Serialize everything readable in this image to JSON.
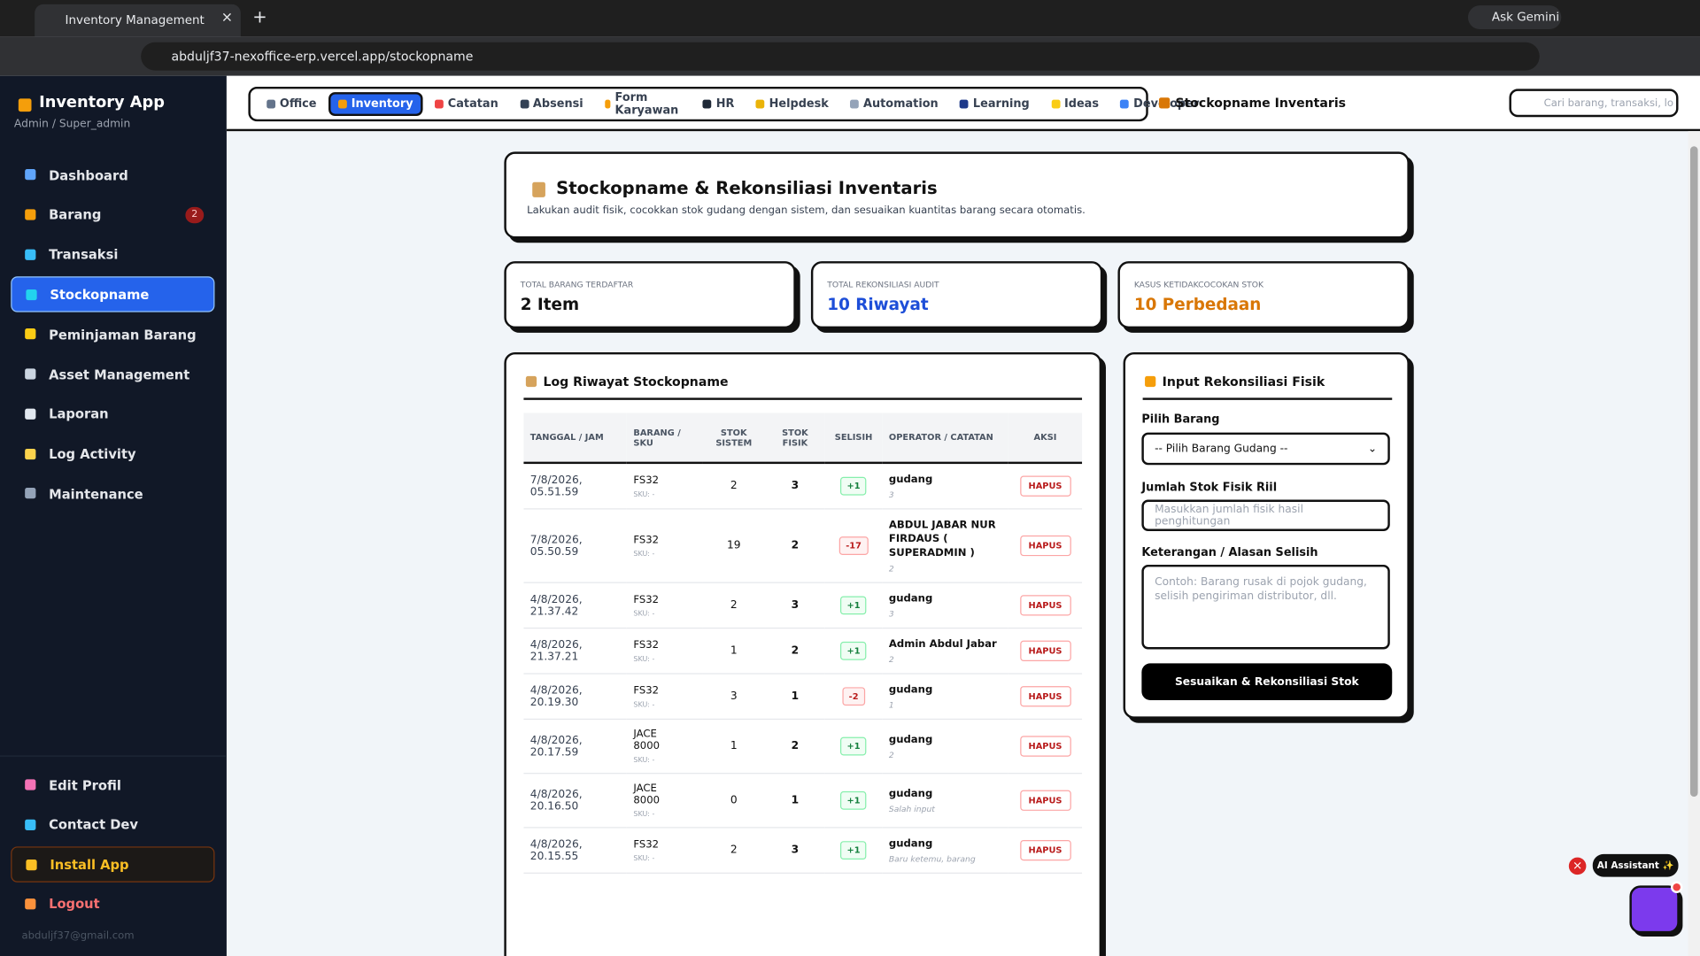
{
  "browser": {
    "tab_title": "Inventory Management",
    "url": "abduljf37-nexoffice-erp.vercel.app/stockopname",
    "ask_gemini": "Ask Gemini"
  },
  "sidebar": {
    "app_name": "Inventory App",
    "role": "Admin / Super_admin",
    "nav": [
      {
        "label": "Dashboard",
        "color": "#60a5fa"
      },
      {
        "label": "Barang",
        "badge": "2",
        "color": "#f59e0b"
      },
      {
        "label": "Transaksi",
        "color": "#38bdf8"
      },
      {
        "label": "Stockopname",
        "active": true,
        "color": "#22d3ee"
      },
      {
        "label": "Peminjaman Barang",
        "color": "#facc15"
      },
      {
        "label": "Asset Management",
        "color": "#cbd5e1"
      },
      {
        "label": "Laporan",
        "color": "#e2e8f0"
      },
      {
        "label": "Log Activity",
        "color": "#fcd34d"
      },
      {
        "label": "Maintenance",
        "color": "#94a3b8"
      }
    ],
    "bottom": [
      {
        "label": "Edit Profil",
        "color": "#f472b6"
      },
      {
        "label": "Contact Dev",
        "color": "#38bdf8"
      },
      {
        "label": "Install App",
        "color": "#fbbf24",
        "style": "install"
      },
      {
        "label": "Logout",
        "color": "#fb923c",
        "style": "logout"
      }
    ],
    "email": "abduljf37@gmail.com"
  },
  "topnav": {
    "tabs": [
      {
        "label": "Office",
        "color": "#64748b"
      },
      {
        "label": "Inventory",
        "active": true,
        "color": "#f59e0b"
      },
      {
        "label": "Catatan",
        "color": "#ef4444"
      },
      {
        "label": "Absensi",
        "color": "#334155"
      },
      {
        "label": "Form Karyawan",
        "color": "#f59e0b"
      },
      {
        "label": "HR",
        "color": "#1f2937"
      },
      {
        "label": "Helpdesk",
        "color": "#eab308"
      },
      {
        "label": "Automation",
        "color": "#94a3b8"
      },
      {
        "label": "Learning",
        "color": "#1e3a8a"
      },
      {
        "label": "Ideas",
        "color": "#facc15"
      },
      {
        "label": "Developer",
        "color": "#3b82f6"
      }
    ],
    "page_label": "Stockopname Inventaris",
    "search_placeholder": "Cari barang, transaksi, lo"
  },
  "header": {
    "title": "Stockopname & Rekonsiliasi Inventaris",
    "subtitle": "Lakukan audit fisik, cocokkan stok gudang dengan sistem, dan sesuaikan kuantitas barang secara otomatis."
  },
  "stats": [
    {
      "label": "TOTAL BARANG TERDAFTAR",
      "value": "2 Item",
      "color": "#111111"
    },
    {
      "label": "TOTAL REKONSILIASI AUDIT",
      "value": "10 Riwayat",
      "color": "#1d4ed8"
    },
    {
      "label": "KASUS KETIDAKCOCOKAN STOK",
      "value": "10 Perbedaan",
      "color": "#d97706"
    }
  ],
  "log": {
    "title": "Log Riwayat Stockopname",
    "columns": [
      "TANGGAL / JAM",
      "BARANG / SKU",
      "STOK SISTEM",
      "STOK FISIK",
      "SELISIH",
      "OPERATOR / CATATAN",
      "AKSI"
    ],
    "rows": [
      {
        "tanggal": "7/8/2026, 05.51.59",
        "barang": "FS32",
        "sku": "SKU: -",
        "sistem": 2,
        "fisik": 3,
        "selisih": "+1",
        "operator": "gudang",
        "catatan": "3",
        "aksi": "HAPUS"
      },
      {
        "tanggal": "7/8/2026, 05.50.59",
        "barang": "FS32",
        "sku": "SKU: -",
        "sistem": 19,
        "fisik": 2,
        "selisih": "-17",
        "operator": "ABDUL JABAR NUR FIRDAUS ( SUPERADMIN )",
        "catatan": "2",
        "aksi": "HAPUS"
      },
      {
        "tanggal": "4/8/2026, 21.37.42",
        "barang": "FS32",
        "sku": "SKU: -",
        "sistem": 2,
        "fisik": 3,
        "selisih": "+1",
        "operator": "gudang",
        "catatan": "3",
        "aksi": "HAPUS"
      },
      {
        "tanggal": "4/8/2026, 21.37.21",
        "barang": "FS32",
        "sku": "SKU: -",
        "sistem": 1,
        "fisik": 2,
        "selisih": "+1",
        "operator": "Admin Abdul Jabar",
        "catatan": "2",
        "aksi": "HAPUS"
      },
      {
        "tanggal": "4/8/2026, 20.19.30",
        "barang": "FS32",
        "sku": "SKU: -",
        "sistem": 3,
        "fisik": 1,
        "selisih": "-2",
        "operator": "gudang",
        "catatan": "1",
        "aksi": "HAPUS"
      },
      {
        "tanggal": "4/8/2026, 20.17.59",
        "barang": "JACE 8000",
        "sku": "SKU: -",
        "sistem": 1,
        "fisik": 2,
        "selisih": "+1",
        "operator": "gudang",
        "catatan": "2",
        "aksi": "HAPUS"
      },
      {
        "tanggal": "4/8/2026, 20.16.50",
        "barang": "JACE 8000",
        "sku": "SKU: -",
        "sistem": 0,
        "fisik": 1,
        "selisih": "+1",
        "operator": "gudang",
        "catatan": "Salah input",
        "aksi": "HAPUS"
      },
      {
        "tanggal": "4/8/2026, 20.15.55",
        "barang": "FS32",
        "sku": "SKU: -",
        "sistem": 2,
        "fisik": 3,
        "selisih": "+1",
        "operator": "gudang",
        "catatan": "Baru ketemu, barang",
        "aksi": "HAPUS"
      }
    ]
  },
  "form": {
    "title": "Input Rekonsiliasi Fisik",
    "barang_label": "Pilih Barang",
    "barang_option": "-- Pilih Barang Gudang --",
    "jumlah_label": "Jumlah Stok Fisik Riil",
    "jumlah_placeholder": "Masukkan jumlah fisik hasil penghitungan",
    "keterangan_label": "Keterangan / Alasan Selisih",
    "keterangan_placeholder": "Contoh: Barang rusak di pojok gudang, selisih pengiriman distributor, dll.",
    "submit": "Sesuaikan & Rekonsiliasi Stok"
  },
  "assistant": {
    "label": "AI Assistant ✨"
  }
}
